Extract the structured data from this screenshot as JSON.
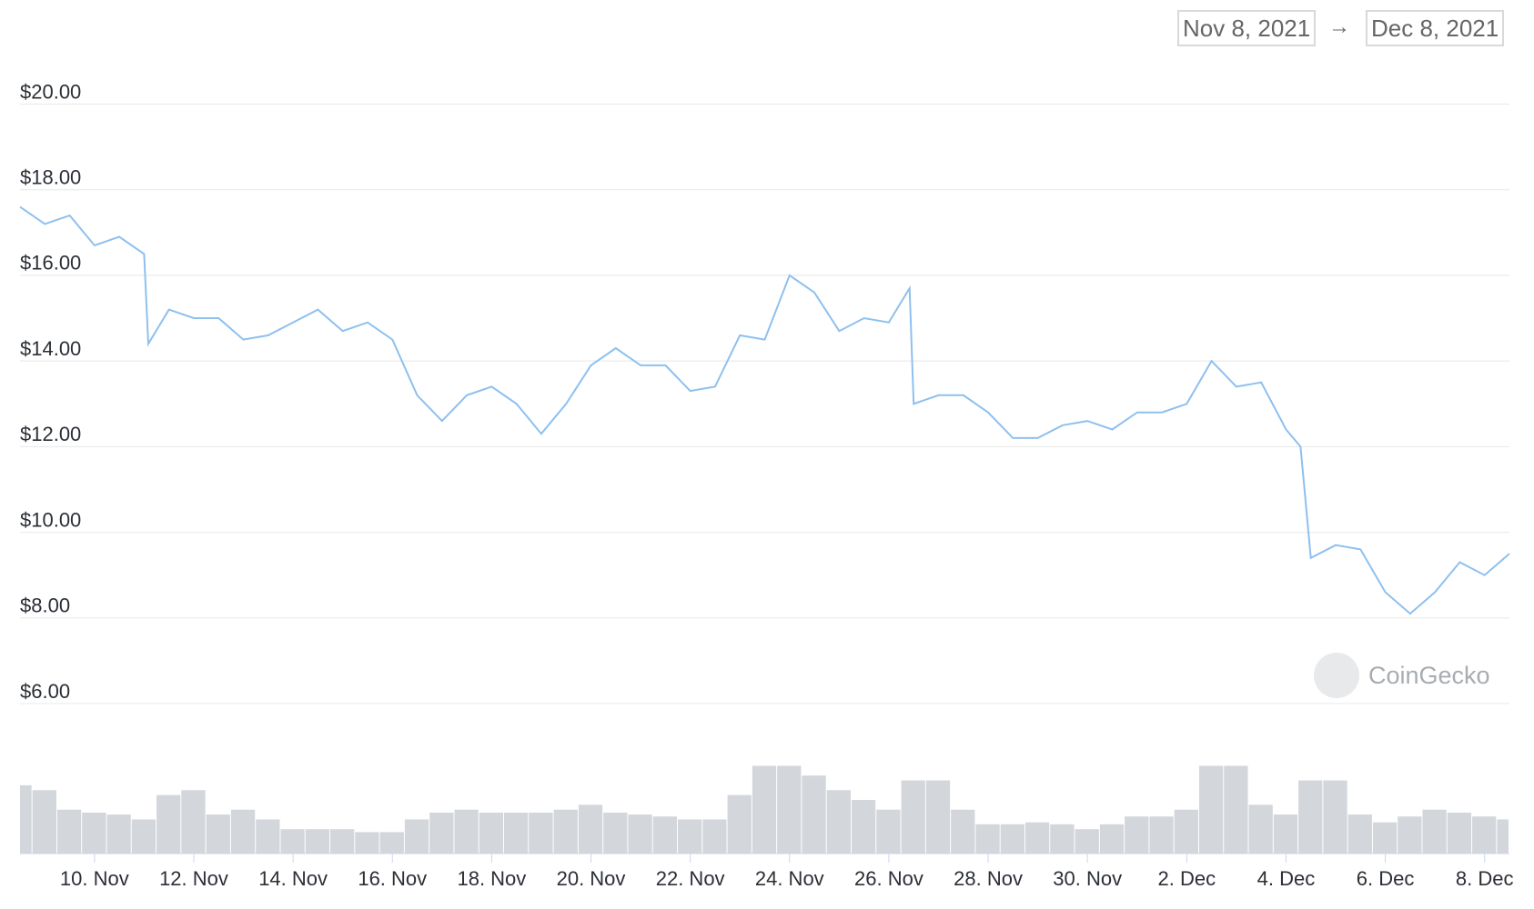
{
  "header": {
    "from": "Nov 8, 2021",
    "separator": "→",
    "to": "Dec 8, 2021"
  },
  "watermark": "CoinGecko",
  "chart_data": [
    {
      "type": "line",
      "color": "#8ec0ef",
      "grid": true,
      "x": [
        "2021-11-08T12:00",
        "2021-11-09T00:00",
        "2021-11-09T12:00",
        "2021-11-10T00:00",
        "2021-11-10T12:00",
        "2021-11-11T00:00",
        "2021-11-11T02:00",
        "2021-11-11T12:00",
        "2021-11-12T00:00",
        "2021-11-12T12:00",
        "2021-11-13T00:00",
        "2021-11-13T12:00",
        "2021-11-14T00:00",
        "2021-11-14T12:00",
        "2021-11-15T00:00",
        "2021-11-15T12:00",
        "2021-11-16T00:00",
        "2021-11-16T12:00",
        "2021-11-17T00:00",
        "2021-11-17T12:00",
        "2021-11-18T00:00",
        "2021-11-18T12:00",
        "2021-11-19T00:00",
        "2021-11-19T12:00",
        "2021-11-20T00:00",
        "2021-11-20T12:00",
        "2021-11-21T00:00",
        "2021-11-21T12:00",
        "2021-11-22T00:00",
        "2021-11-22T12:00",
        "2021-11-23T00:00",
        "2021-11-23T12:00",
        "2021-11-24T00:00",
        "2021-11-24T12:00",
        "2021-11-25T00:00",
        "2021-11-25T12:00",
        "2021-11-26T00:00",
        "2021-11-26T10:00",
        "2021-11-26T12:00",
        "2021-11-27T00:00",
        "2021-11-27T12:00",
        "2021-11-28T00:00",
        "2021-11-28T12:00",
        "2021-11-29T00:00",
        "2021-11-29T12:00",
        "2021-11-30T00:00",
        "2021-11-30T12:00",
        "2021-12-01T00:00",
        "2021-12-01T12:00",
        "2021-12-02T00:00",
        "2021-12-02T12:00",
        "2021-12-03T00:00",
        "2021-12-03T12:00",
        "2021-12-04T00:00",
        "2021-12-04T07:00",
        "2021-12-04T12:00",
        "2021-12-05T00:00",
        "2021-12-05T12:00",
        "2021-12-06T00:00",
        "2021-12-06T12:00",
        "2021-12-07T00:00",
        "2021-12-07T12:00",
        "2021-12-08T00:00",
        "2021-12-08T12:00"
      ],
      "values": [
        17.6,
        17.2,
        17.4,
        16.7,
        16.9,
        16.5,
        14.4,
        15.2,
        15.0,
        15.0,
        14.5,
        14.6,
        14.9,
        15.2,
        14.7,
        14.9,
        14.5,
        13.2,
        12.6,
        13.2,
        13.4,
        13.0,
        12.3,
        13.0,
        13.9,
        14.3,
        13.9,
        13.9,
        13.3,
        13.4,
        14.6,
        14.5,
        16.0,
        15.6,
        14.7,
        15.0,
        14.9,
        15.7,
        13.0,
        13.2,
        13.2,
        12.8,
        12.2,
        12.2,
        12.5,
        12.6,
        12.4,
        12.8,
        12.8,
        13.0,
        14.0,
        13.4,
        13.5,
        12.4,
        12.0,
        9.4,
        9.7,
        9.6,
        8.6,
        8.1,
        8.6,
        9.3,
        9.0,
        9.5
      ],
      "xlim": [
        "2021-11-08T12:00",
        "2021-12-08T12:00"
      ],
      "xticks": [
        {
          "value": "2021-11-10",
          "label": "10. Nov"
        },
        {
          "value": "2021-11-12",
          "label": "12. Nov"
        },
        {
          "value": "2021-11-14",
          "label": "14. Nov"
        },
        {
          "value": "2021-11-16",
          "label": "16. Nov"
        },
        {
          "value": "2021-11-18",
          "label": "18. Nov"
        },
        {
          "value": "2021-11-20",
          "label": "20. Nov"
        },
        {
          "value": "2021-11-22",
          "label": "22. Nov"
        },
        {
          "value": "2021-11-24",
          "label": "24. Nov"
        },
        {
          "value": "2021-11-26",
          "label": "26. Nov"
        },
        {
          "value": "2021-11-28",
          "label": "28. Nov"
        },
        {
          "value": "2021-11-30",
          "label": "30. Nov"
        },
        {
          "value": "2021-12-02",
          "label": "2. Dec"
        },
        {
          "value": "2021-12-04",
          "label": "4. Dec"
        },
        {
          "value": "2021-12-06",
          "label": "6. Dec"
        },
        {
          "value": "2021-12-08",
          "label": "8. Dec"
        }
      ],
      "ylim": [
        6,
        20
      ],
      "yticks": [
        {
          "value": 6,
          "label": "$6.00"
        },
        {
          "value": 8,
          "label": "$8.00"
        },
        {
          "value": 10,
          "label": "$10.00"
        },
        {
          "value": 12,
          "label": "$12.00"
        },
        {
          "value": 14,
          "label": "$14.00"
        },
        {
          "value": 16,
          "label": "$16.00"
        },
        {
          "value": 18,
          "label": "$18.00"
        },
        {
          "value": 20,
          "label": "$20.00"
        }
      ]
    },
    {
      "type": "bar",
      "color": "#d3d6db",
      "x": [
        "2021-11-08T12:00",
        "2021-11-09T00:00",
        "2021-11-09T12:00",
        "2021-11-10T00:00",
        "2021-11-10T12:00",
        "2021-11-11T00:00",
        "2021-11-11T12:00",
        "2021-11-12T00:00",
        "2021-11-12T12:00",
        "2021-11-13T00:00",
        "2021-11-13T12:00",
        "2021-11-14T00:00",
        "2021-11-14T12:00",
        "2021-11-15T00:00",
        "2021-11-15T12:00",
        "2021-11-16T00:00",
        "2021-11-16T12:00",
        "2021-11-17T00:00",
        "2021-11-17T12:00",
        "2021-11-18T00:00",
        "2021-11-18T12:00",
        "2021-11-19T00:00",
        "2021-11-19T12:00",
        "2021-11-20T00:00",
        "2021-11-20T12:00",
        "2021-11-21T00:00",
        "2021-11-21T12:00",
        "2021-11-22T00:00",
        "2021-11-22T12:00",
        "2021-11-23T00:00",
        "2021-11-23T12:00",
        "2021-11-24T00:00",
        "2021-11-24T12:00",
        "2021-11-25T00:00",
        "2021-11-25T12:00",
        "2021-11-26T00:00",
        "2021-11-26T12:00",
        "2021-11-27T00:00",
        "2021-11-27T12:00",
        "2021-11-28T00:00",
        "2021-11-28T12:00",
        "2021-11-29T00:00",
        "2021-11-29T12:00",
        "2021-11-30T00:00",
        "2021-11-30T12:00",
        "2021-12-01T00:00",
        "2021-12-01T12:00",
        "2021-12-02T00:00",
        "2021-12-02T12:00",
        "2021-12-03T00:00",
        "2021-12-03T12:00",
        "2021-12-04T00:00",
        "2021-12-04T12:00",
        "2021-12-05T00:00",
        "2021-12-05T12:00",
        "2021-12-06T00:00",
        "2021-12-06T12:00",
        "2021-12-07T00:00",
        "2021-12-07T12:00",
        "2021-12-08T00:00",
        "2021-12-08T12:00"
      ],
      "values": [
        70,
        65,
        45,
        42,
        40,
        35,
        60,
        65,
        40,
        45,
        35,
        25,
        25,
        25,
        22,
        22,
        35,
        42,
        45,
        42,
        42,
        42,
        45,
        50,
        42,
        40,
        38,
        35,
        35,
        60,
        90,
        90,
        80,
        65,
        55,
        45,
        75,
        75,
        45,
        30,
        30,
        32,
        30,
        25,
        30,
        38,
        38,
        45,
        90,
        90,
        50,
        40,
        75,
        75,
        40,
        32,
        38,
        45,
        42,
        38,
        35
      ],
      "ylim": [
        0,
        110
      ]
    }
  ]
}
